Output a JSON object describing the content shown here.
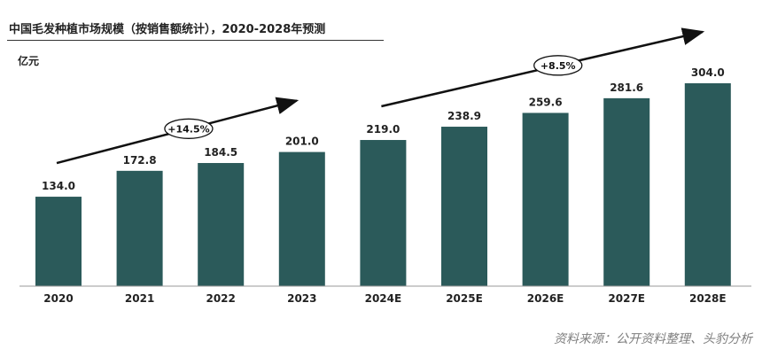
{
  "title": "中国毛发种植市场规模（按销售额统计），2020-2028年预测",
  "unit": "亿元",
  "source": "资料来源：公开资料整理、头豹分析",
  "chart_data": {
    "type": "bar",
    "title": "中国毛发种植市场规模（按销售额统计），2020-2028年预测",
    "ylabel": "亿元",
    "xlabel": "",
    "categories": [
      "2020",
      "2021",
      "2022",
      "2023",
      "2024E",
      "2025E",
      "2026E",
      "2027E",
      "2028E"
    ],
    "values": [
      134.0,
      172.8,
      184.5,
      201.0,
      219.0,
      238.9,
      259.6,
      281.6,
      304.0
    ],
    "value_labels": [
      "134.0",
      "172.8",
      "184.5",
      "201.0",
      "219.0",
      "238.9",
      "259.6",
      "281.6",
      "304.0"
    ],
    "ylim": [
      0,
      320
    ],
    "grid": false,
    "bar_color": "#2b5a5a",
    "annotations": [
      {
        "label": "+14.5%",
        "from": "2020",
        "to": "2023"
      },
      {
        "label": "+8.5%",
        "from": "2024E",
        "to": "2028E"
      }
    ]
  }
}
